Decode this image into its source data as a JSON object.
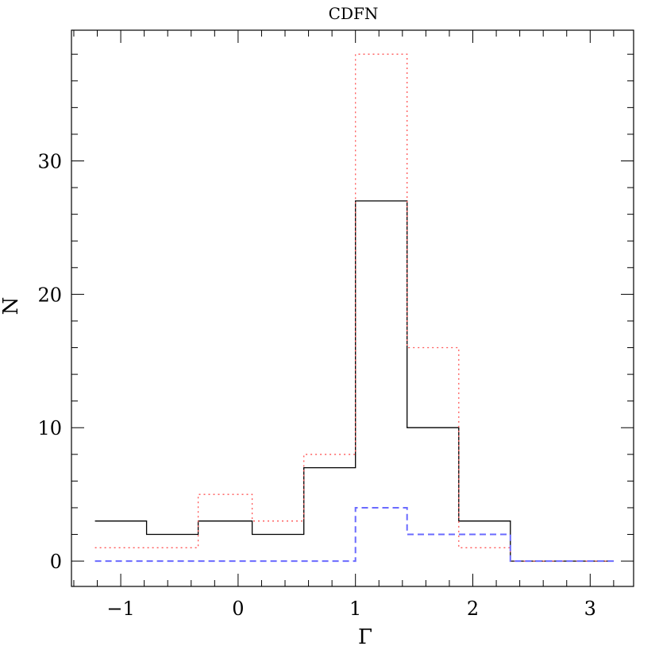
{
  "chart_data": {
    "type": "histogram-step",
    "title": "CDFN",
    "xlabel": "Γ",
    "ylabel": "N",
    "xlim": [
      -1.42,
      3.37
    ],
    "ylim": [
      -1.9,
      39.8
    ],
    "x_ticks_major": [
      -1,
      0,
      1,
      2,
      3
    ],
    "x_tick_labels": [
      "−1",
      "0",
      "1",
      "2",
      "3"
    ],
    "y_ticks_major": [
      0,
      10,
      20,
      30
    ],
    "y_tick_labels": [
      "0",
      "10",
      "20",
      "30"
    ],
    "x_minor_step": 0.2,
    "y_minor_step": 2,
    "grid": false,
    "bin_edges": [
      -1.22,
      -0.78,
      -0.34,
      0.12,
      0.56,
      1.0,
      1.44,
      1.88,
      2.32,
      2.76,
      3.2
    ],
    "series": [
      {
        "style": "solid",
        "color": "#000000",
        "values": [
          3,
          2,
          3,
          2,
          7,
          27,
          10,
          3,
          0,
          0
        ]
      },
      {
        "style": "dotted",
        "color": "#ff5555",
        "values": [
          1,
          1,
          5,
          3,
          8,
          38,
          16,
          1,
          0,
          0
        ]
      },
      {
        "style": "dashed",
        "color": "#6a6aff",
        "values": [
          0,
          0,
          0,
          0,
          0,
          4,
          2,
          2,
          0,
          0
        ]
      }
    ]
  }
}
